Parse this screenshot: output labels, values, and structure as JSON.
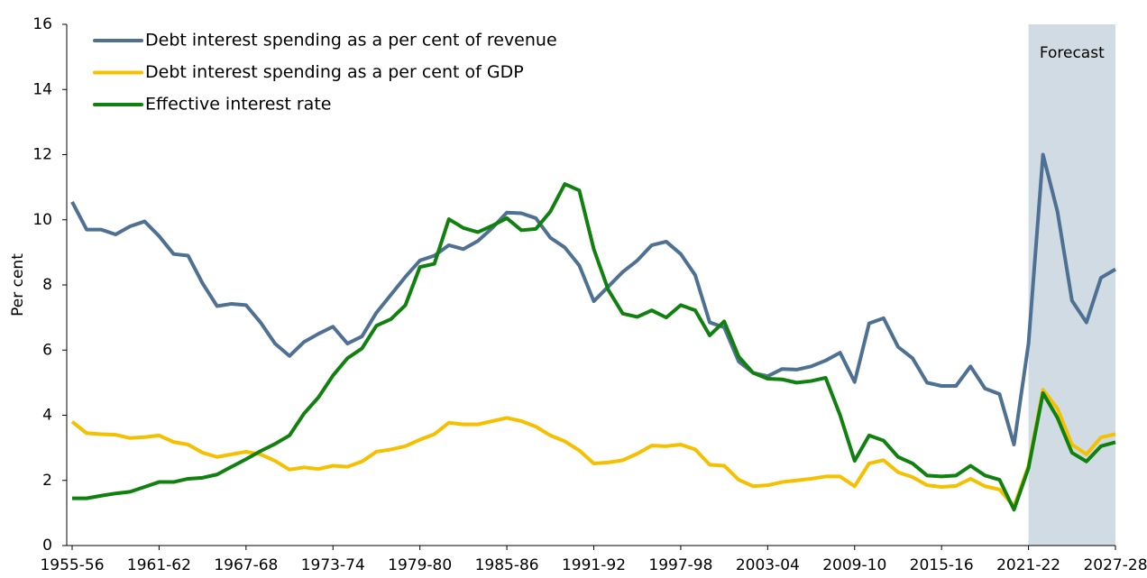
{
  "chart_data": {
    "type": "line",
    "y_label": "Per cent",
    "categories": [
      "1955-56",
      null,
      null,
      null,
      null,
      null,
      "1961-62",
      null,
      null,
      null,
      null,
      null,
      "1967-68",
      null,
      null,
      null,
      null,
      null,
      "1973-74",
      null,
      null,
      null,
      null,
      null,
      "1979-80",
      null,
      null,
      null,
      null,
      null,
      "1985-86",
      null,
      null,
      null,
      null,
      null,
      "1991-92",
      null,
      null,
      null,
      null,
      null,
      "1997-98",
      null,
      null,
      null,
      null,
      null,
      "2003-04",
      null,
      null,
      null,
      null,
      null,
      "2009-10",
      null,
      null,
      null,
      null,
      null,
      "2015-16",
      null,
      null,
      null,
      null,
      null,
      "2021-22",
      null,
      null,
      null,
      null,
      null,
      "2027-28"
    ],
    "series": [
      {
        "name": "Debt interest spending as a per cent of revenue",
        "color": "#4e7092",
        "values": [
          10.55,
          9.7,
          9.7,
          9.55,
          9.8,
          9.95,
          9.5,
          8.95,
          8.9,
          8.05,
          7.35,
          7.42,
          7.38,
          6.85,
          6.2,
          5.82,
          6.25,
          6.5,
          6.72,
          6.2,
          6.42,
          7.15,
          7.7,
          8.25,
          8.75,
          8.9,
          9.22,
          9.1,
          9.35,
          9.75,
          10.22,
          10.2,
          10.05,
          9.45,
          9.15,
          8.6,
          7.5,
          7.95,
          8.4,
          8.75,
          9.22,
          9.33,
          8.95,
          8.3,
          6.85,
          6.7,
          5.65,
          5.3,
          5.2,
          5.42,
          5.4,
          5.5,
          5.68,
          5.92,
          5.02,
          6.82,
          6.98,
          6.1,
          5.75,
          5.0,
          4.9,
          4.9,
          5.5,
          4.82,
          4.65,
          3.1,
          6.2,
          12.0,
          10.25,
          7.52,
          6.85,
          8.22,
          8.48
        ]
      },
      {
        "name": "Debt interest spending as a per cent of GDP",
        "color": "#f5c000",
        "values": [
          3.8,
          3.45,
          3.42,
          3.4,
          3.3,
          3.33,
          3.38,
          3.18,
          3.1,
          2.85,
          2.72,
          2.8,
          2.88,
          2.8,
          2.6,
          2.33,
          2.4,
          2.35,
          2.45,
          2.42,
          2.58,
          2.88,
          2.95,
          3.05,
          3.25,
          3.42,
          3.77,
          3.72,
          3.72,
          3.82,
          3.92,
          3.82,
          3.65,
          3.38,
          3.2,
          2.92,
          2.52,
          2.55,
          2.62,
          2.82,
          3.07,
          3.05,
          3.1,
          2.95,
          2.48,
          2.45,
          2.02,
          1.82,
          1.85,
          1.95,
          2.0,
          2.05,
          2.12,
          2.12,
          1.82,
          2.52,
          2.62,
          2.25,
          2.1,
          1.85,
          1.8,
          1.83,
          2.05,
          1.82,
          1.72,
          1.2,
          2.45,
          4.78,
          4.2,
          3.1,
          2.8,
          3.32,
          3.42
        ]
      },
      {
        "name": "Effective interest rate",
        "color": "#10800f",
        "values": [
          1.45,
          1.45,
          1.53,
          1.6,
          1.65,
          1.8,
          1.95,
          1.95,
          2.05,
          2.08,
          2.18,
          2.42,
          2.65,
          2.9,
          3.12,
          3.38,
          4.05,
          4.55,
          5.22,
          5.75,
          6.05,
          6.75,
          6.95,
          7.38,
          8.55,
          8.65,
          10.02,
          9.75,
          9.62,
          9.82,
          10.05,
          9.68,
          9.72,
          10.25,
          11.1,
          10.9,
          9.1,
          7.85,
          7.12,
          7.02,
          7.22,
          7.0,
          7.38,
          7.22,
          6.45,
          6.88,
          5.8,
          5.3,
          5.12,
          5.1,
          5.0,
          5.05,
          5.15,
          4.0,
          2.6,
          3.38,
          3.22,
          2.72,
          2.52,
          2.15,
          2.12,
          2.15,
          2.45,
          2.15,
          2.02,
          1.1,
          2.38,
          4.68,
          3.92,
          2.85,
          2.58,
          3.05,
          3.17
        ]
      }
    ],
    "forecast": {
      "label": "Forecast",
      "from": "2021-22",
      "to": "2027-28",
      "color": "#d0dbe3"
    },
    "ylim": [
      0,
      16
    ],
    "yticks": [
      0,
      2,
      4,
      6,
      8,
      10,
      12,
      14,
      16
    ],
    "grid": false,
    "legend": "upper left"
  }
}
